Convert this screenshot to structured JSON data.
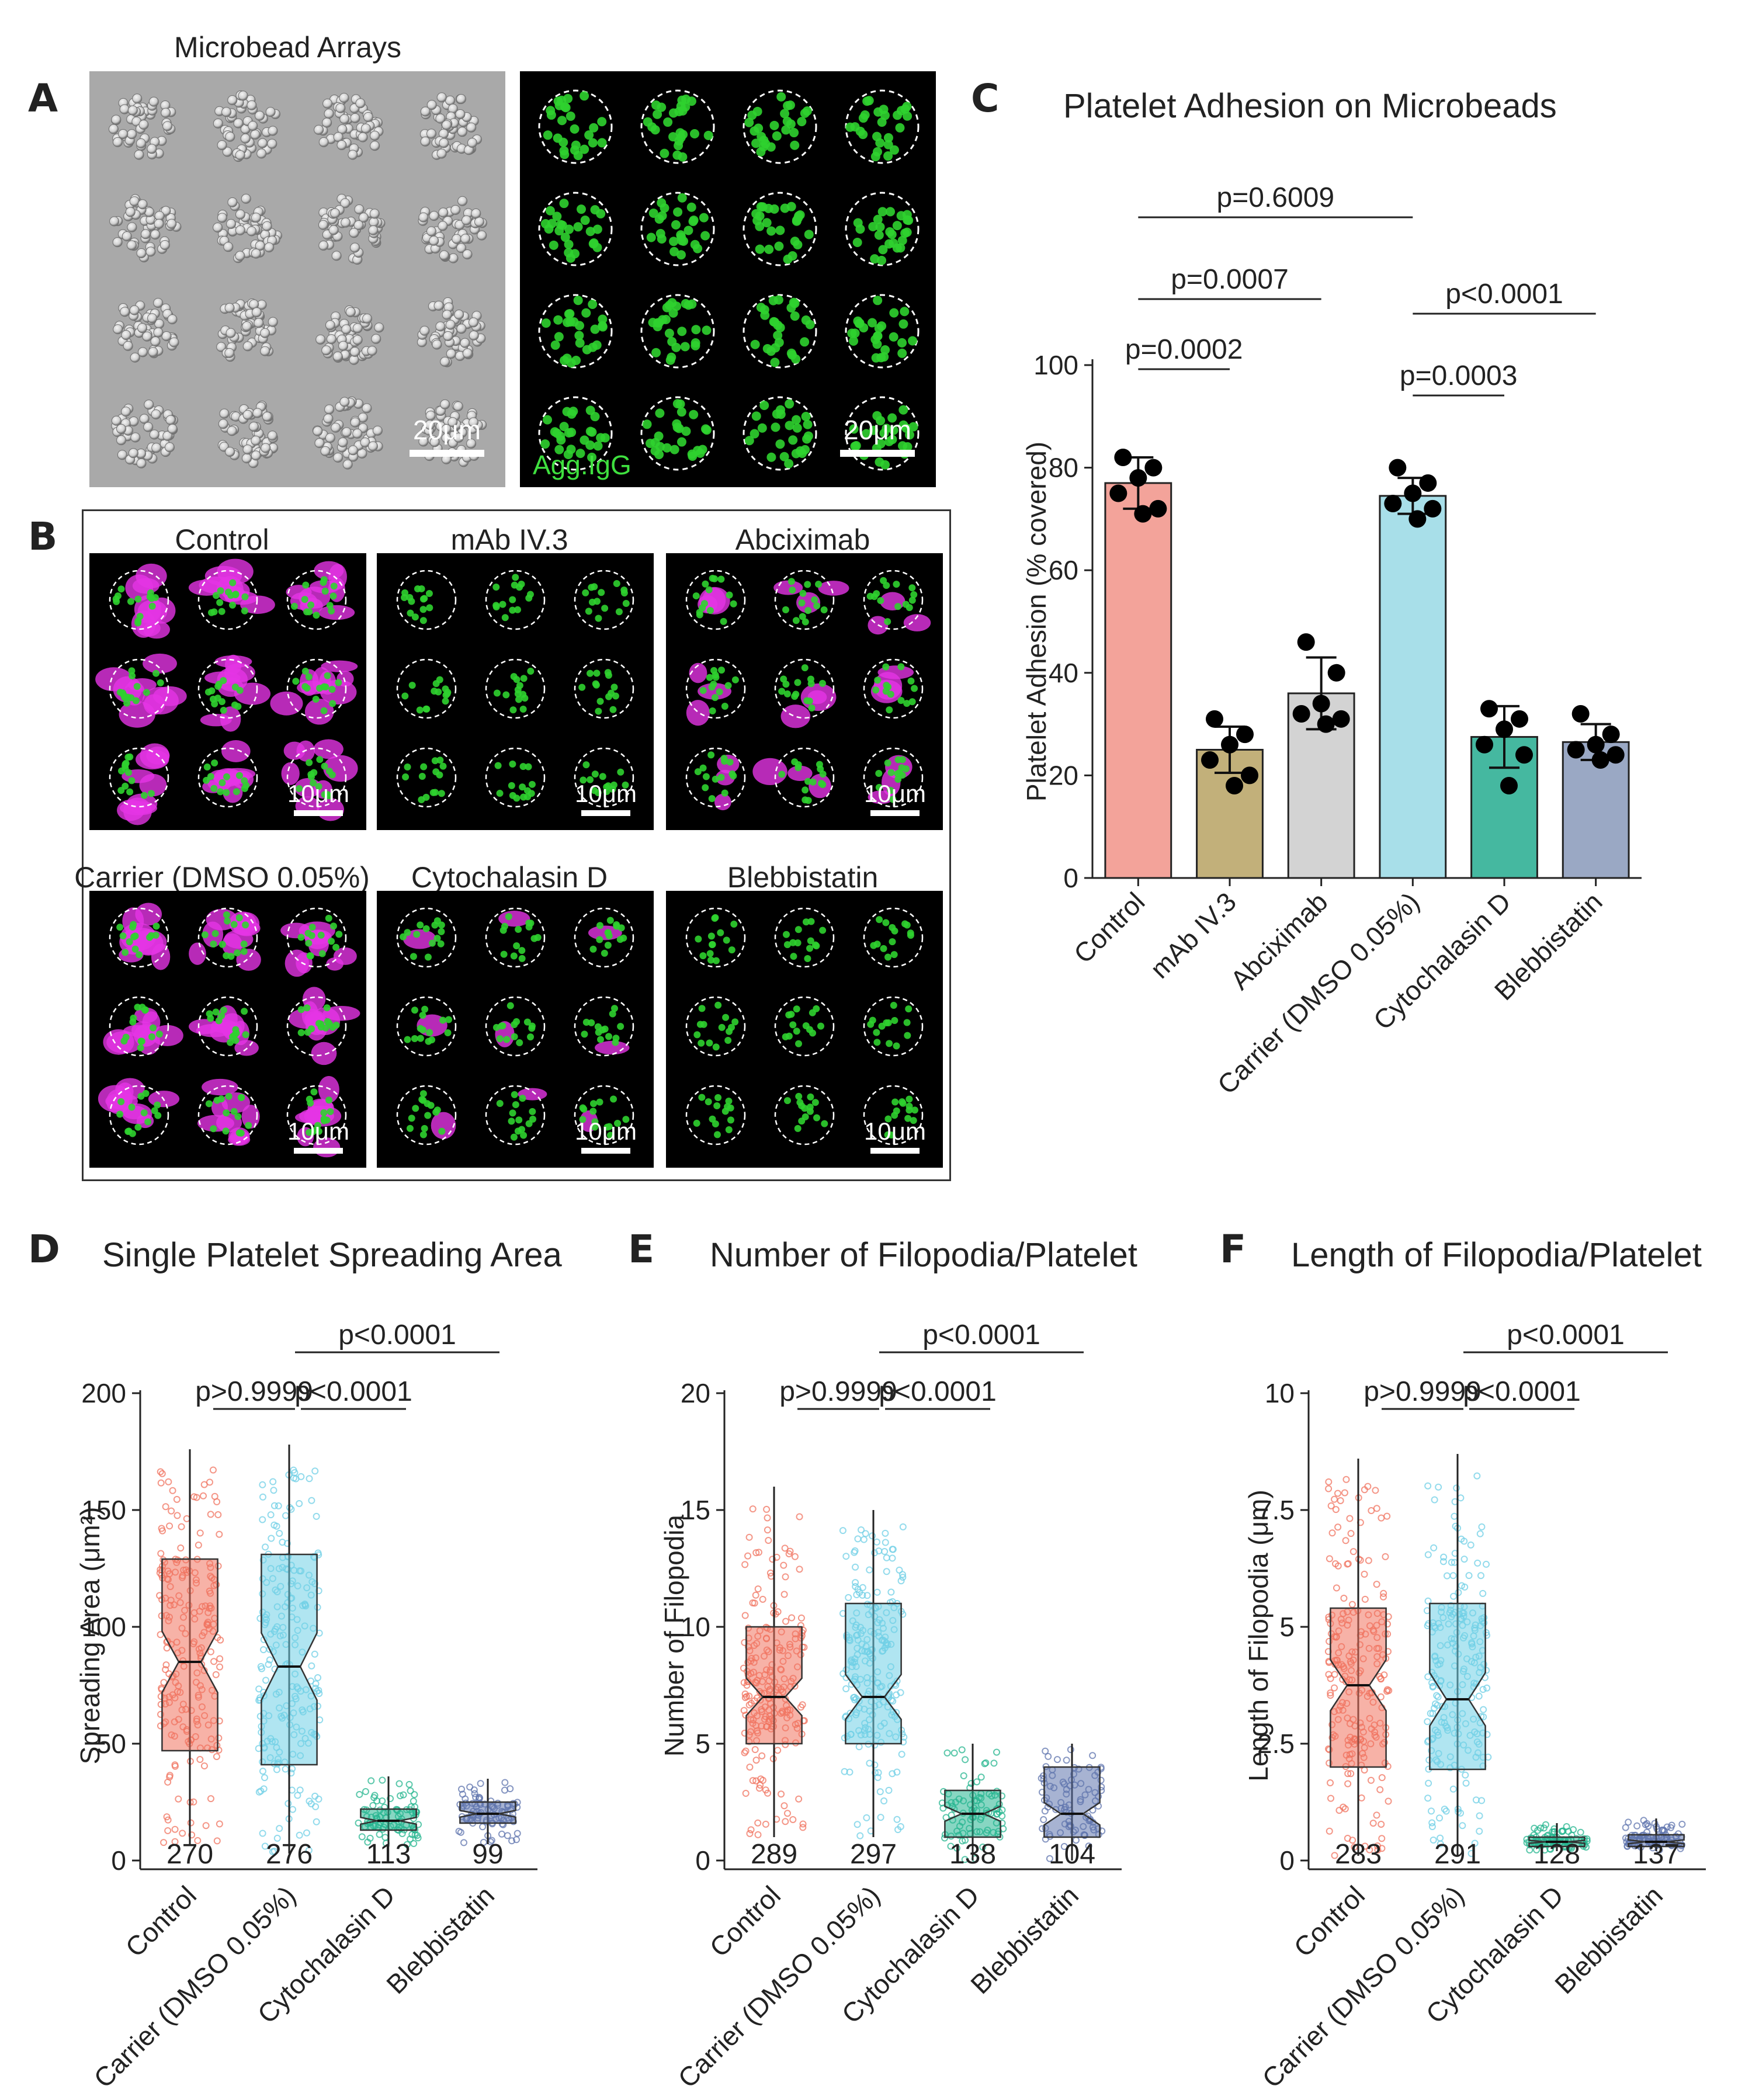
{
  "panel_letters": {
    "a": "A",
    "b": "B",
    "c": "C",
    "d": "D",
    "e": "E",
    "f": "F"
  },
  "panel_a": {
    "title": "Microbead Arrays",
    "scalebar_left": "20μm",
    "scalebar_right": "20μm",
    "stain_label": "Agg.IgG",
    "colors": {
      "sem_bg": "#a8a8a8",
      "fluor_bg": "#000000",
      "bead": "#2fd12f"
    }
  },
  "panel_b": {
    "conditions": [
      {
        "label": "Control",
        "scalebar": "10μm",
        "magenta": "heavy"
      },
      {
        "label": "mAb IV.3",
        "scalebar": "10μm",
        "magenta": "none"
      },
      {
        "label": "Abciximab",
        "scalebar": "10μm",
        "magenta": "light"
      },
      {
        "label": "Carrier (DMSO 0.05%)",
        "scalebar": "10μm",
        "magenta": "heavy"
      },
      {
        "label": "Cytochalasin D",
        "scalebar": "10μm",
        "magenta": "few"
      },
      {
        "label": "Blebbistatin",
        "scalebar": "10μm",
        "magenta": "none"
      }
    ],
    "colors": {
      "bead": "#2fd12f",
      "platelet": "#e535e5"
    }
  },
  "chart_data": [
    {
      "type": "bar",
      "panel": "C",
      "title": "Platelet Adhesion on Microbeads",
      "xlabel": "",
      "ylabel": "Platelet Adhesion (% covered)",
      "ylim": [
        0,
        100
      ],
      "yticks": [
        0,
        20,
        40,
        60,
        80,
        100
      ],
      "categories": [
        "Control",
        "mAb IV.3",
        "Abciximab",
        "Carrier (DMSO 0.05%)",
        "Cytochalasin D",
        "Blebbistatin"
      ],
      "values": [
        77,
        25,
        36,
        74.5,
        27.5,
        26.5
      ],
      "error": [
        5,
        4.5,
        7,
        3.5,
        6,
        3.5
      ],
      "points": [
        [
          82,
          80,
          78,
          75,
          72,
          71
        ],
        [
          31,
          28,
          26,
          23,
          20,
          18
        ],
        [
          46,
          40,
          34,
          32,
          31,
          30
        ],
        [
          80,
          77,
          75,
          73,
          72,
          70
        ],
        [
          33,
          31,
          29,
          26,
          24,
          18
        ],
        [
          32,
          28,
          26,
          25,
          24,
          23
        ]
      ],
      "colors": [
        "#f3a39a",
        "#c2b07a",
        "#d3d3d3",
        "#a8dfe9",
        "#45b8a0",
        "#9aa8c4"
      ],
      "comparisons": [
        {
          "label": "p=0.6009",
          "from": 0,
          "to": 3
        },
        {
          "label": "p=0.0007",
          "from": 0,
          "to": 2
        },
        {
          "label": "p=0.0002",
          "from": 0,
          "to": 1
        },
        {
          "label": "p<0.0001",
          "from": 3,
          "to": 5
        },
        {
          "label": "p=0.0003",
          "from": 3,
          "to": 4
        }
      ]
    },
    {
      "type": "box",
      "panel": "D",
      "title": "Single Platelet Spreading Area",
      "ylabel": "Spreading Area (μm²)",
      "ylim": [
        0,
        200
      ],
      "yticks": [
        0,
        50,
        100,
        150,
        200
      ],
      "categories": [
        "Control",
        "Carrier (DMSO 0.05%)",
        "Cytochalasin D",
        "Blebbistatin"
      ],
      "n": [
        "270",
        "276",
        "113",
        "99"
      ],
      "boxes": [
        {
          "min": 7,
          "q1": 47,
          "median": 85,
          "q3": 129,
          "max": 176
        },
        {
          "min": 3,
          "q1": 41,
          "median": 83,
          "q3": 131,
          "max": 178
        },
        {
          "min": 6,
          "q1": 13,
          "median": 17,
          "q3": 22,
          "max": 36
        },
        {
          "min": 7,
          "q1": 16,
          "median": 20,
          "q3": 25,
          "max": 35
        }
      ],
      "colors": [
        "#f0735f",
        "#6fcfe5",
        "#25b58f",
        "#5f74ad"
      ],
      "comparisons": [
        {
          "label": "p<0.0001",
          "from": 1,
          "to": 3
        },
        {
          "label": "p>0.9999",
          "from": 0,
          "to": 1
        },
        {
          "label": "p<0.0001",
          "from": 1,
          "to": 2
        }
      ]
    },
    {
      "type": "box",
      "panel": "E",
      "title": "Number of Filopodia/Platelet",
      "ylabel": "Number of Filopodia",
      "ylim": [
        0,
        20
      ],
      "yticks": [
        0,
        5,
        10,
        15,
        20
      ],
      "categories": [
        "Control",
        "Carrier (DMSO 0.05%)",
        "Cytochalasin D",
        "Blebbistatin"
      ],
      "n": [
        "289",
        "297",
        "138",
        "104"
      ],
      "boxes": [
        {
          "min": 1,
          "q1": 5,
          "median": 7,
          "q3": 10,
          "max": 16
        },
        {
          "min": 1,
          "q1": 5,
          "median": 7,
          "q3": 11,
          "max": 15
        },
        {
          "min": 0,
          "q1": 1,
          "median": 2,
          "q3": 3,
          "max": 5
        },
        {
          "min": 0,
          "q1": 1,
          "median": 2,
          "q3": 4,
          "max": 5
        }
      ],
      "colors": [
        "#f0735f",
        "#6fcfe5",
        "#25b58f",
        "#5f74ad"
      ],
      "comparisons": [
        {
          "label": "p<0.0001",
          "from": 1,
          "to": 3
        },
        {
          "label": "p>0.9999",
          "from": 0,
          "to": 1
        },
        {
          "label": "p<0.0001",
          "from": 1,
          "to": 2
        }
      ]
    },
    {
      "type": "box",
      "panel": "F",
      "title": "Length of Filopodia/Platelet",
      "ylabel": "Length of Filopodia (μm)",
      "ylim": [
        0,
        10
      ],
      "yticks": [
        0,
        2.5,
        5,
        7.5,
        10
      ],
      "yticklabels": [
        "0",
        "2.5",
        "5",
        "7.5",
        "10"
      ],
      "categories": [
        "Control",
        "Carrier (DMSO 0.05%)",
        "Cytochalasin D",
        "Blebbistatin"
      ],
      "n": [
        "283",
        "291",
        "128",
        "137"
      ],
      "boxes": [
        {
          "min": 0.1,
          "q1": 2,
          "median": 3.75,
          "q3": 5.4,
          "max": 8.6
        },
        {
          "min": 0.1,
          "q1": 1.95,
          "median": 3.45,
          "q3": 5.5,
          "max": 8.7
        },
        {
          "min": 0.2,
          "q1": 0.3,
          "median": 0.4,
          "q3": 0.5,
          "max": 0.8
        },
        {
          "min": 0.2,
          "q1": 0.3,
          "median": 0.4,
          "q3": 0.55,
          "max": 0.9
        }
      ],
      "colors": [
        "#f0735f",
        "#6fcfe5",
        "#25b58f",
        "#5f74ad"
      ],
      "comparisons": [
        {
          "label": "p<0.0001",
          "from": 1,
          "to": 3
        },
        {
          "label": "p>0.9999",
          "from": 0,
          "to": 1
        },
        {
          "label": "p<0.0001",
          "from": 1,
          "to": 2
        }
      ]
    }
  ]
}
